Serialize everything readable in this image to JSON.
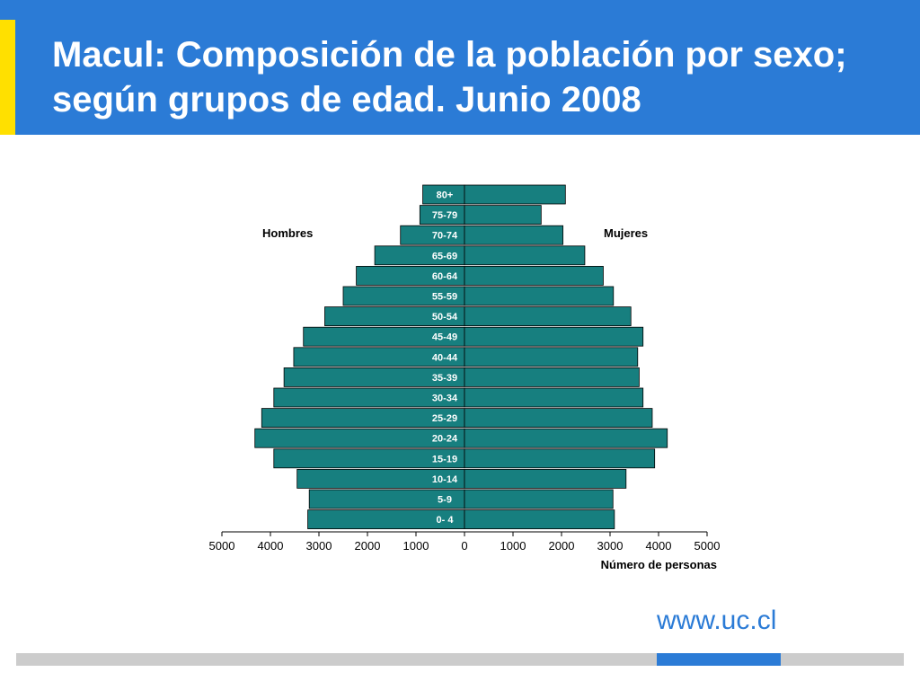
{
  "slide": {
    "title": "Macul: Composición de la población por sexo; según grupos de edad. Junio 2008",
    "url": "www.uc.cl",
    "colors": {
      "header": "#2b7bd6",
      "accent": "#ffe000",
      "bar": "#177f7f",
      "footer": "#cccccc"
    }
  },
  "chart_data": {
    "type": "bar",
    "orientation": "horizontal",
    "subtype": "population-pyramid",
    "xlabel": "Número de personas",
    "left_label": "Hombres",
    "right_label": "Mujeres",
    "xlim": [
      -5000,
      5000
    ],
    "x_ticks": [
      "5000",
      "4000",
      "3000",
      "2000",
      "1000",
      "0",
      "1000",
      "2000",
      "3000",
      "4000",
      "5000"
    ],
    "categories": [
      "80+",
      "75-79",
      "70-74",
      "65-69",
      "60-64",
      "55-59",
      "50-54",
      "45-49",
      "40-44",
      "35-39",
      "30-34",
      "25-29",
      "20-24",
      "15-19",
      "10-14",
      "5-9",
      "0- 4"
    ],
    "series": [
      {
        "name": "Hombres",
        "values": [
          860,
          920,
          1320,
          1850,
          2230,
          2500,
          2880,
          3320,
          3520,
          3720,
          3930,
          4180,
          4320,
          3930,
          3450,
          3200,
          3230
        ]
      },
      {
        "name": "Mujeres",
        "values": [
          2080,
          1580,
          2030,
          2480,
          2860,
          3070,
          3430,
          3680,
          3570,
          3600,
          3680,
          3870,
          4180,
          3920,
          3330,
          3060,
          3090
        ]
      }
    ]
  }
}
